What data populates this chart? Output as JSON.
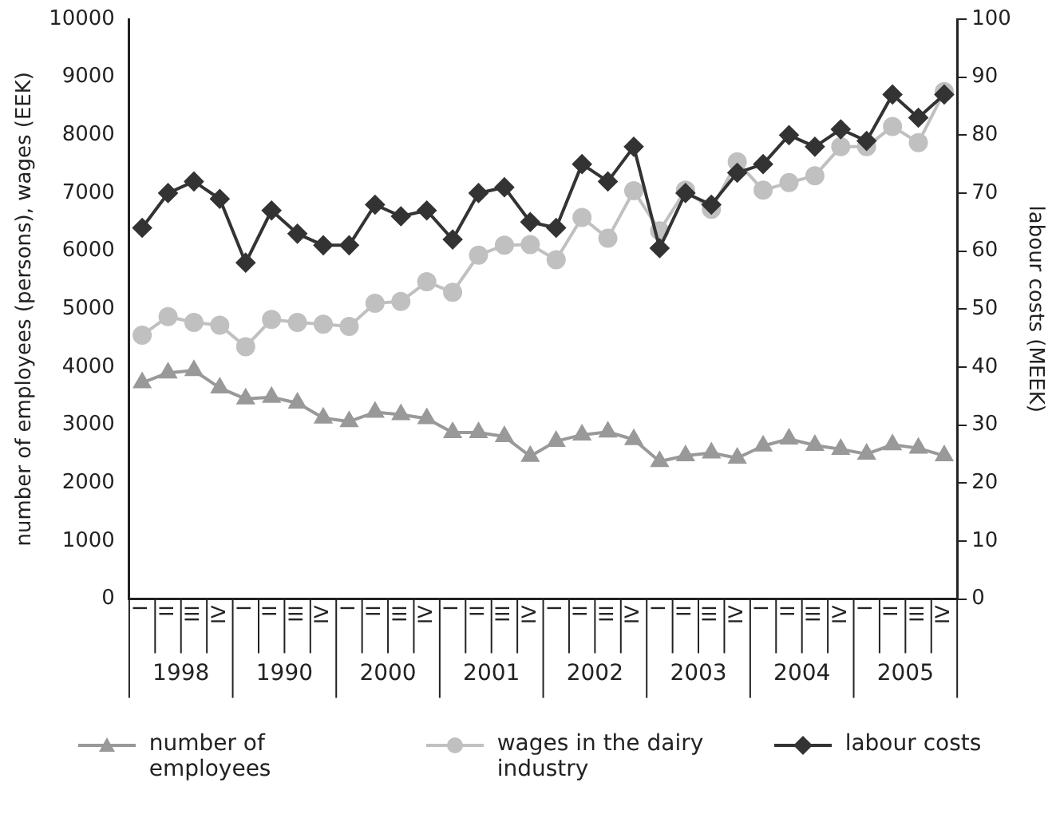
{
  "chart_data": {
    "type": "line",
    "ylabel": "number of employees (persons), wages (EEK)",
    "y2label": "labour costs (MEEK)",
    "categories": [
      "I",
      "II",
      "III",
      "IV",
      "I",
      "II",
      "III",
      "IV",
      "I",
      "II",
      "III",
      "IV",
      "I",
      "II",
      "III",
      "IV",
      "I",
      "II",
      "III",
      "IV",
      "I",
      "II",
      "III",
      "IV",
      "I",
      "II",
      "III",
      "IV",
      "I",
      "II",
      "III",
      "IV"
    ],
    "annotations": [
      "1998",
      "1990",
      "2000",
      "2001",
      "2002",
      "2003",
      "2004",
      "2005"
    ],
    "ylim": [
      0,
      10000
    ],
    "yticks": [
      0,
      1000,
      2000,
      3000,
      4000,
      5000,
      6000,
      7000,
      8000,
      9000,
      10000
    ],
    "y2lim": [
      0,
      100
    ],
    "y2ticks": [
      0,
      10,
      20,
      30,
      40,
      50,
      60,
      70,
      80,
      90,
      100
    ],
    "grid": false,
    "legend": "bottom",
    "series": [
      {
        "name": "number of employees",
        "color": "#999999",
        "marker": "triangle",
        "values": [
          3730,
          3900,
          3940,
          3640,
          3450,
          3480,
          3380,
          3120,
          3060,
          3220,
          3180,
          3110,
          2870,
          2870,
          2800,
          2460,
          2720,
          2830,
          2880,
          2750,
          2370,
          2470,
          2520,
          2430,
          2640,
          2760,
          2650,
          2580,
          2500,
          2660,
          2600,
          2470
        ]
      },
      {
        "name": "wages in the dairy industry",
        "color": "#c0c0c0",
        "marker": "circle",
        "values": [
          4550,
          4870,
          4770,
          4720,
          4350,
          4820,
          4770,
          4740,
          4700,
          5100,
          5130,
          5470,
          5290,
          5930,
          6100,
          6110,
          5850,
          6580,
          6220,
          7040,
          6350,
          7050,
          6720,
          7540,
          7050,
          7180,
          7300,
          7800,
          7800,
          8150,
          7870,
          8750
        ]
      },
      {
        "name": "labour costs",
        "color": "#333333",
        "marker": "diamond",
        "axis": "y2",
        "values": [
          64,
          70,
          72,
          69,
          58,
          67,
          63,
          61,
          61,
          68,
          66,
          67,
          62,
          70,
          71,
          65,
          64,
          75,
          72,
          78,
          60.5,
          70,
          68,
          73.5,
          75,
          80,
          78,
          81,
          79,
          87,
          83,
          87
        ]
      }
    ]
  }
}
